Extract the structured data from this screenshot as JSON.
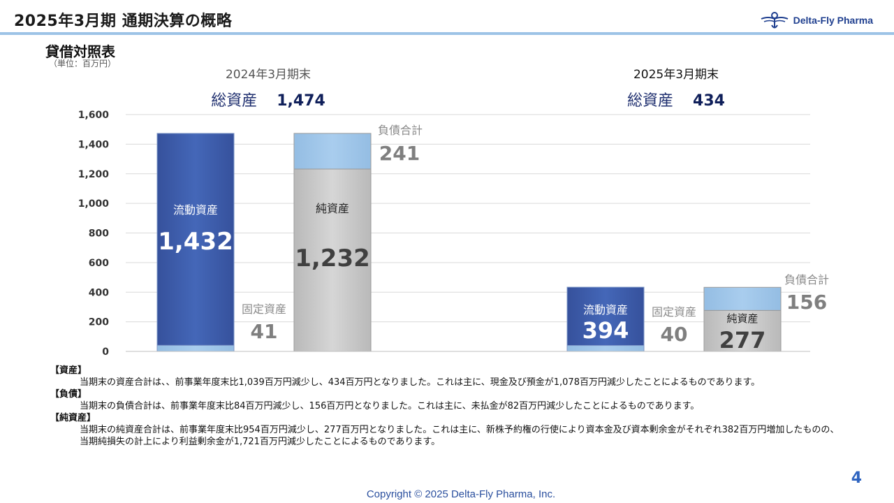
{
  "header": {
    "title": "2025年3月期 通期決算の概略",
    "logo_text": "Delta-Fly Pharma"
  },
  "section": {
    "title": "貸借対照表",
    "unit": "（単位：百万円）"
  },
  "periods": [
    {
      "label": "2024年3月期末",
      "total_label": "総資産",
      "total_value": "1,474"
    },
    {
      "label": "2025年3月期末",
      "total_label": "総資産",
      "total_value": "434"
    }
  ],
  "chart_data": {
    "type": "bar",
    "stacked": true,
    "ylim": [
      0,
      1600
    ],
    "yticks": [
      0,
      200,
      400,
      600,
      800,
      1000,
      1200,
      1400,
      1600
    ],
    "ytick_labels": [
      "0",
      "200",
      "400",
      "600",
      "800",
      "1,000",
      "1,200",
      "1,400",
      "1,600"
    ],
    "grid": true,
    "groups": [
      {
        "period": "2024年3月期末",
        "assets": [
          {
            "name": "固定資産",
            "value": 41,
            "label": "41",
            "color": "#9dc3e6"
          },
          {
            "name": "流動資産",
            "value": 1432,
            "label": "1,432",
            "color": "#3f5fae"
          }
        ],
        "liabilities_equity": [
          {
            "name": "純資産",
            "value": 1232,
            "label": "1,232",
            "color": "#c8c8c8"
          },
          {
            "name": "負債合計",
            "value": 241,
            "label": "241",
            "color": "#9dc3e6"
          }
        ]
      },
      {
        "period": "2025年3月期末",
        "assets": [
          {
            "name": "固定資産",
            "value": 40,
            "label": "40",
            "color": "#9dc3e6"
          },
          {
            "name": "流動資産",
            "value": 394,
            "label": "394",
            "color": "#3f5fae"
          }
        ],
        "liabilities_equity": [
          {
            "name": "純資産",
            "value": 277,
            "label": "277",
            "color": "#c8c8c8"
          },
          {
            "name": "負債合計",
            "value": 156,
            "label": "156",
            "color": "#9dc3e6"
          }
        ]
      }
    ]
  },
  "notes": [
    {
      "heading": "【資産】",
      "body": "当期末の資産合計は、、前事業年度末比1,039百万円減少し、434百万円となりました。これは主に、現金及び預金が1,078百万円減少したことによるものであります。"
    },
    {
      "heading": "【負債】",
      "body": "当期末の負債合計は、前事業年度末比84百万円減少し、156百万円となりました。これは主に、未払金が82百万円減少したことによるものであります。"
    },
    {
      "heading": "【純資産】",
      "body": "当期末の純資産合計は、前事業年度末比954百万円減少し、277百万円となりました。これは主に、新株予約権の行使により資本金及び資本剰余金がそれぞれ382百万円増加したものの、当期純損失の計上により利益剰余金が1,721百万円減少したことによるものであります。"
    }
  ],
  "footer": {
    "page_number": "4",
    "copyright": "Copyright © 2025  Delta-Fly Pharma, Inc."
  }
}
